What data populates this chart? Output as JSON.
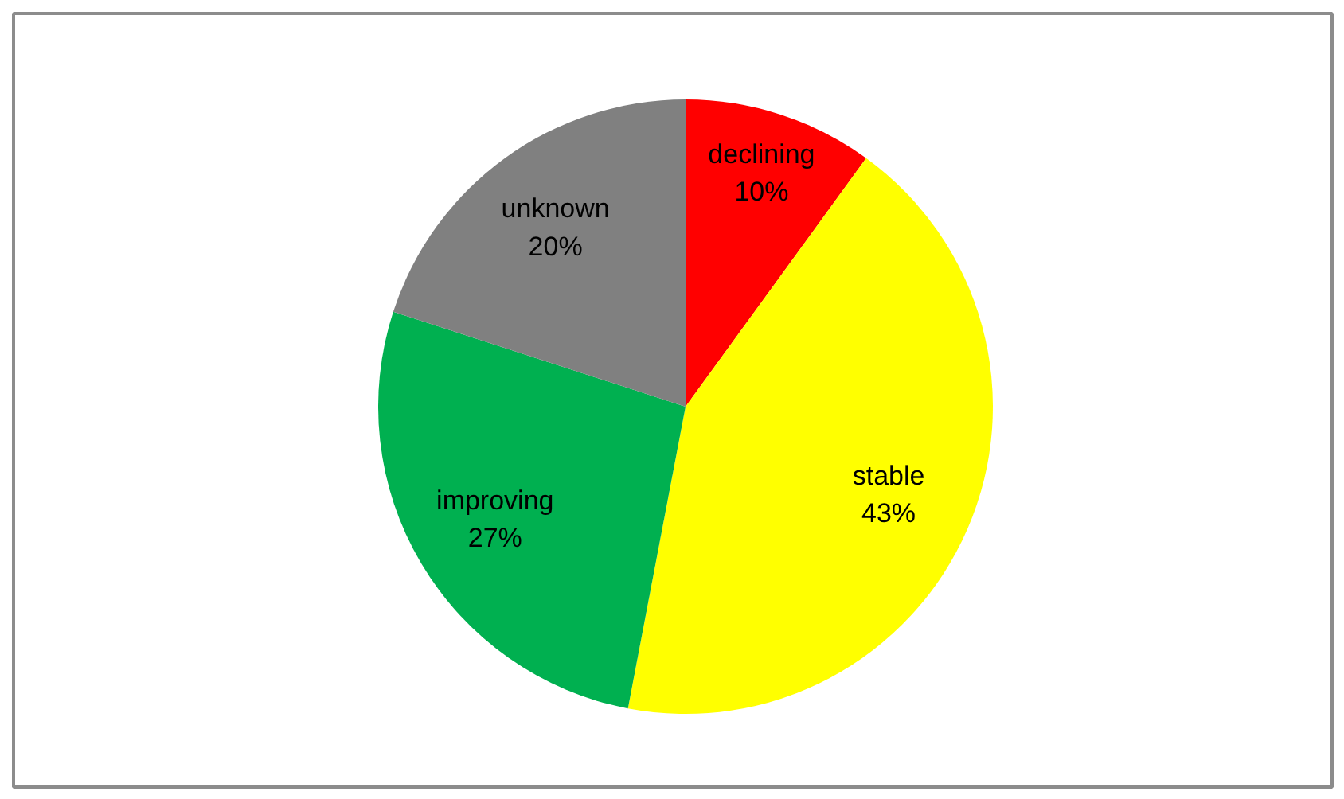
{
  "chart_data": {
    "type": "pie",
    "categories": [
      "declining",
      "stable",
      "improving",
      "unknown"
    ],
    "values": [
      10,
      43,
      27,
      20
    ],
    "colors": [
      "#ff0000",
      "#ffff00",
      "#00b050",
      "#808080"
    ],
    "value_labels": [
      "10%",
      "43%",
      "27%",
      "20%"
    ]
  }
}
